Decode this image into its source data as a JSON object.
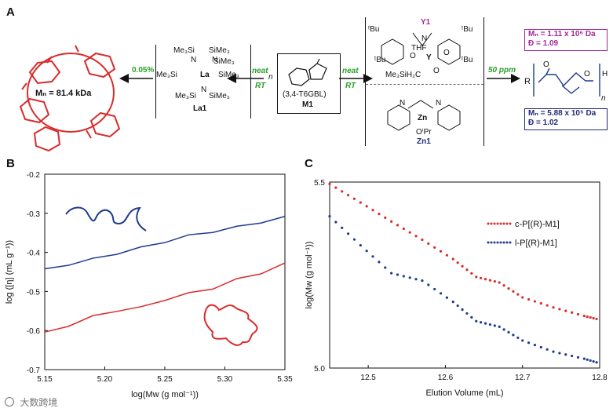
{
  "panel_labels": {
    "a": "A",
    "b": "B",
    "c": "C"
  },
  "scheme": {
    "cyclic_polymer_mn": "Mₙ = 81.4 kDa",
    "la1_loading": "0.05%",
    "neat_label": "neat",
    "rt_label": "RT",
    "la1_label": "La1",
    "la1_formula": [
      "Me₃Si",
      "SiMe₃",
      "N",
      "La",
      "SiMe₃",
      "Me₃Si",
      "N",
      "SiMe₃",
      "Me₃Si",
      "N",
      "SiMe₃"
    ],
    "monomer_label": "M1",
    "monomer_name": "(3,4-T6GBL)",
    "monomer_n": "n",
    "y1_label": "Y1",
    "y1_fragments": [
      "ᵗBu",
      "ᵗBu",
      "ᵗBu",
      "ᵗBu",
      "THF",
      "Me₃SiH₂C",
      "N",
      "O",
      "O",
      "Y",
      "O"
    ],
    "zn1_label": "Zn1",
    "zn1_fragments": [
      "N",
      "Zn",
      "N",
      "OⁱPr"
    ],
    "ppm_label": "50 ppm",
    "linear_mn_top": "Mₙ = 1.11 x 10⁶ Da",
    "linear_dispersity_top": "Đ = 1.09",
    "linear_mn_bottom": "Mₙ = 5.88 x 10⁵ Da",
    "linear_dispersity_bottom": "Đ = 1.02",
    "linear_formula": [
      "R",
      "O",
      "O",
      "H",
      "n"
    ],
    "colors": {
      "red": "#d92b2b",
      "blue": "#1f3b8f",
      "green": "#2aa12a",
      "purple": "#a0299a",
      "navy": "#232a78"
    }
  },
  "chart_data": [
    {
      "type": "line",
      "title": "",
      "xlabel": "log(Mw (g mol⁻¹))",
      "ylabel": "log ([η] (mL g⁻¹))",
      "xlim": [
        5.15,
        5.35
      ],
      "ylim": [
        -0.7,
        -0.2
      ],
      "xticks": [
        "5.15",
        "5.20",
        "5.25",
        "5.30",
        "5.35"
      ],
      "yticks": [
        "-0.2",
        "-0.3",
        "-0.4",
        "-0.5",
        "-0.6",
        "-0.7"
      ],
      "series": [
        {
          "name": "linear",
          "color": "#1f3b8f",
          "x": [
            5.15,
            5.17,
            5.19,
            5.21,
            5.23,
            5.25,
            5.27,
            5.29,
            5.31,
            5.33,
            5.35
          ],
          "y": [
            -0.445,
            -0.43,
            -0.418,
            -0.402,
            -0.389,
            -0.372,
            -0.358,
            -0.346,
            -0.336,
            -0.322,
            -0.311
          ]
        },
        {
          "name": "cyclic",
          "color": "#d92b2b",
          "x": [
            5.15,
            5.17,
            5.19,
            5.21,
            5.23,
            5.25,
            5.27,
            5.29,
            5.31,
            5.33,
            5.35
          ],
          "y": [
            -0.607,
            -0.586,
            -0.565,
            -0.548,
            -0.542,
            -0.52,
            -0.506,
            -0.491,
            -0.47,
            -0.452,
            -0.43
          ]
        }
      ]
    },
    {
      "type": "scatter",
      "title": "",
      "xlabel": "Elution Volume (mL)",
      "ylabel": "log(Mw (g mol⁻¹))",
      "xlim": [
        12.45,
        12.8
      ],
      "ylim": [
        5.0,
        5.5
      ],
      "xticks": [
        "12.5",
        "12.6",
        "12.7",
        "12.8"
      ],
      "yticks": [
        "5.5",
        "5.0"
      ],
      "legend_location": "top-right",
      "series": [
        {
          "name": "c-P[(R)-M1]",
          "color": "#d92b2b",
          "x": [
            12.45,
            12.49,
            12.53,
            12.57,
            12.61,
            12.64,
            12.67,
            12.7,
            12.74,
            12.78,
            12.8
          ],
          "y": [
            5.495,
            5.445,
            5.394,
            5.345,
            5.293,
            5.245,
            5.23,
            5.19,
            5.163,
            5.14,
            5.13
          ]
        },
        {
          "name": "l-P[(R)-M1]",
          "color": "#1f3b8f",
          "x": [
            12.45,
            12.49,
            12.53,
            12.57,
            12.61,
            12.64,
            12.67,
            12.7,
            12.74,
            12.78,
            12.8
          ],
          "y": [
            5.408,
            5.33,
            5.255,
            5.235,
            5.178,
            5.126,
            5.111,
            5.074,
            5.044,
            5.025,
            5.013
          ]
        }
      ]
    }
  ],
  "watermark_text": "大数跨境"
}
